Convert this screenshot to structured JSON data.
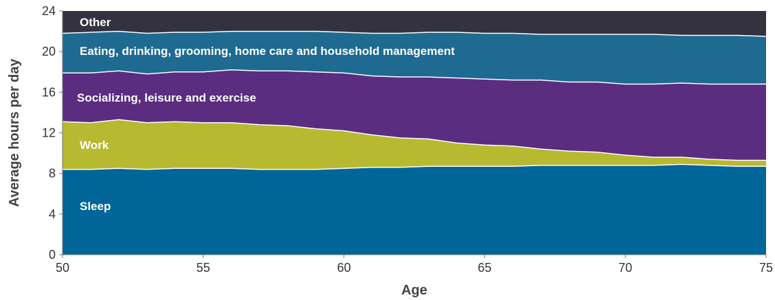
{
  "chart_data": {
    "type": "area",
    "stacked": true,
    "xlabel": "Age",
    "ylabel": "Average hours per day",
    "xlim": [
      50,
      75
    ],
    "ylim": [
      0,
      24
    ],
    "xticks": [
      "50",
      "55",
      "60",
      "65",
      "70",
      "75"
    ],
    "yticks": [
      "0",
      "4",
      "8",
      "12",
      "16",
      "20",
      "24"
    ],
    "grid": false,
    "x": [
      50,
      51,
      52,
      53,
      54,
      55,
      56,
      57,
      58,
      59,
      60,
      61,
      62,
      63,
      64,
      65,
      66,
      67,
      68,
      69,
      70,
      71,
      72,
      73,
      74,
      75
    ],
    "series": [
      {
        "name": "Sleep",
        "color": "#006699",
        "values": [
          8.4,
          8.4,
          8.5,
          8.4,
          8.5,
          8.5,
          8.5,
          8.4,
          8.4,
          8.4,
          8.5,
          8.6,
          8.6,
          8.7,
          8.7,
          8.7,
          8.7,
          8.8,
          8.8,
          8.8,
          8.8,
          8.8,
          8.9,
          8.8,
          8.7,
          8.7
        ]
      },
      {
        "name": "Work",
        "color": "#B7B931",
        "values": [
          4.7,
          4.6,
          4.8,
          4.6,
          4.6,
          4.5,
          4.5,
          4.4,
          4.3,
          4.0,
          3.7,
          3.2,
          2.9,
          2.7,
          2.3,
          2.1,
          2.0,
          1.6,
          1.4,
          1.3,
          1.0,
          0.8,
          0.7,
          0.6,
          0.6,
          0.6
        ]
      },
      {
        "name": "Socializing, leisure and exercise",
        "color": "#5A2D81",
        "values": [
          4.8,
          4.9,
          4.8,
          4.8,
          4.9,
          5.0,
          5.2,
          5.3,
          5.4,
          5.6,
          5.7,
          5.8,
          6.0,
          6.1,
          6.4,
          6.5,
          6.5,
          6.8,
          6.8,
          6.9,
          7.0,
          7.2,
          7.3,
          7.4,
          7.5,
          7.5
        ]
      },
      {
        "name": "Eating, drinking, grooming, home care and household management",
        "color": "#1E6A91",
        "values": [
          3.9,
          4.0,
          3.9,
          4.0,
          3.9,
          3.9,
          3.8,
          3.9,
          3.9,
          4.0,
          4.0,
          4.2,
          4.3,
          4.4,
          4.5,
          4.5,
          4.6,
          4.5,
          4.7,
          4.7,
          4.9,
          4.9,
          4.7,
          4.8,
          4.8,
          4.7
        ]
      },
      {
        "name": "Other",
        "color": "#33323E",
        "values": [
          2.2,
          2.1,
          2.0,
          2.2,
          2.1,
          2.1,
          2.0,
          2.0,
          2.0,
          2.0,
          2.1,
          2.2,
          2.2,
          2.1,
          2.1,
          2.2,
          2.2,
          2.3,
          2.3,
          2.3,
          2.3,
          2.3,
          2.4,
          2.4,
          2.4,
          2.5
        ]
      }
    ]
  }
}
